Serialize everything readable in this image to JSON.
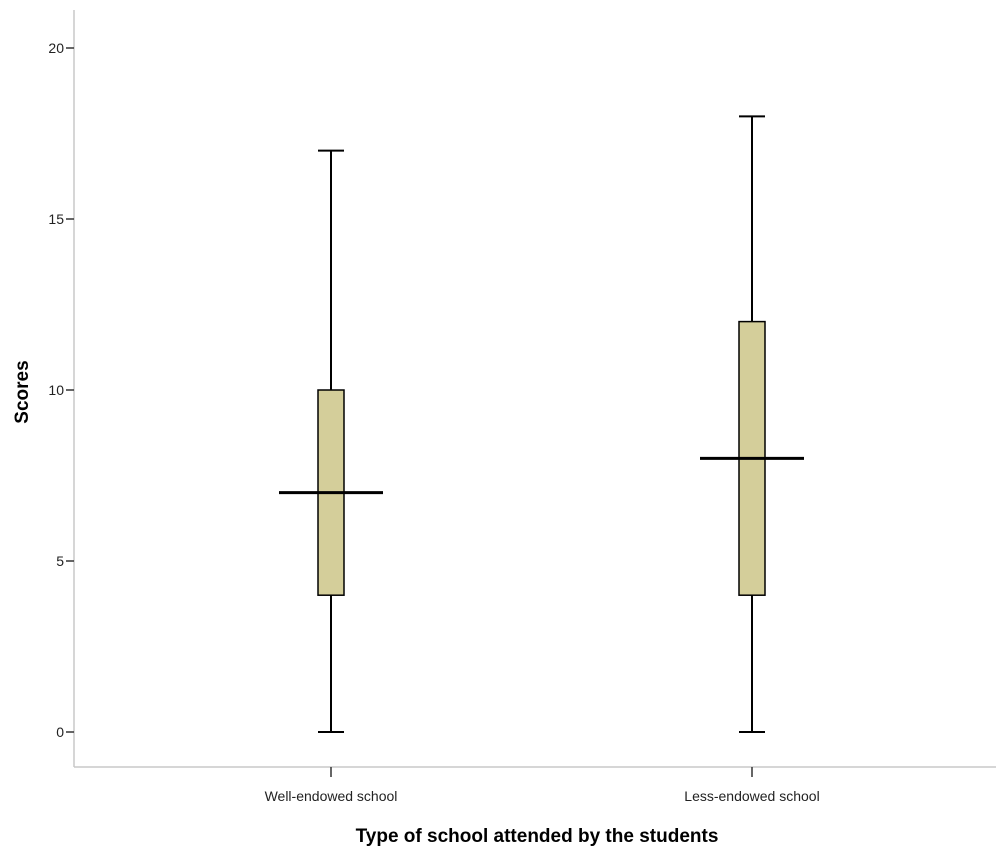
{
  "chart_data": {
    "type": "boxplot",
    "title": "",
    "xlabel": "Type of school attended by the students",
    "ylabel": "Scores",
    "ylim": [
      -1,
      21
    ],
    "yticks": [
      0,
      5,
      10,
      15,
      20
    ],
    "ytick_labels": [
      "0",
      "5",
      "10",
      "15",
      "20"
    ],
    "categories": [
      "Well-endowed school",
      "Less-endowed school"
    ],
    "boxes": [
      {
        "category": "Well-endowed school",
        "min": 0,
        "q1": 4,
        "median": 7,
        "q3": 10,
        "max": 17
      },
      {
        "category": "Less-endowed school",
        "min": 0,
        "q1": 4,
        "median": 8,
        "q3": 12,
        "max": 18
      }
    ],
    "box_color": "#d4ce9a",
    "grid": false,
    "legend": "none"
  }
}
